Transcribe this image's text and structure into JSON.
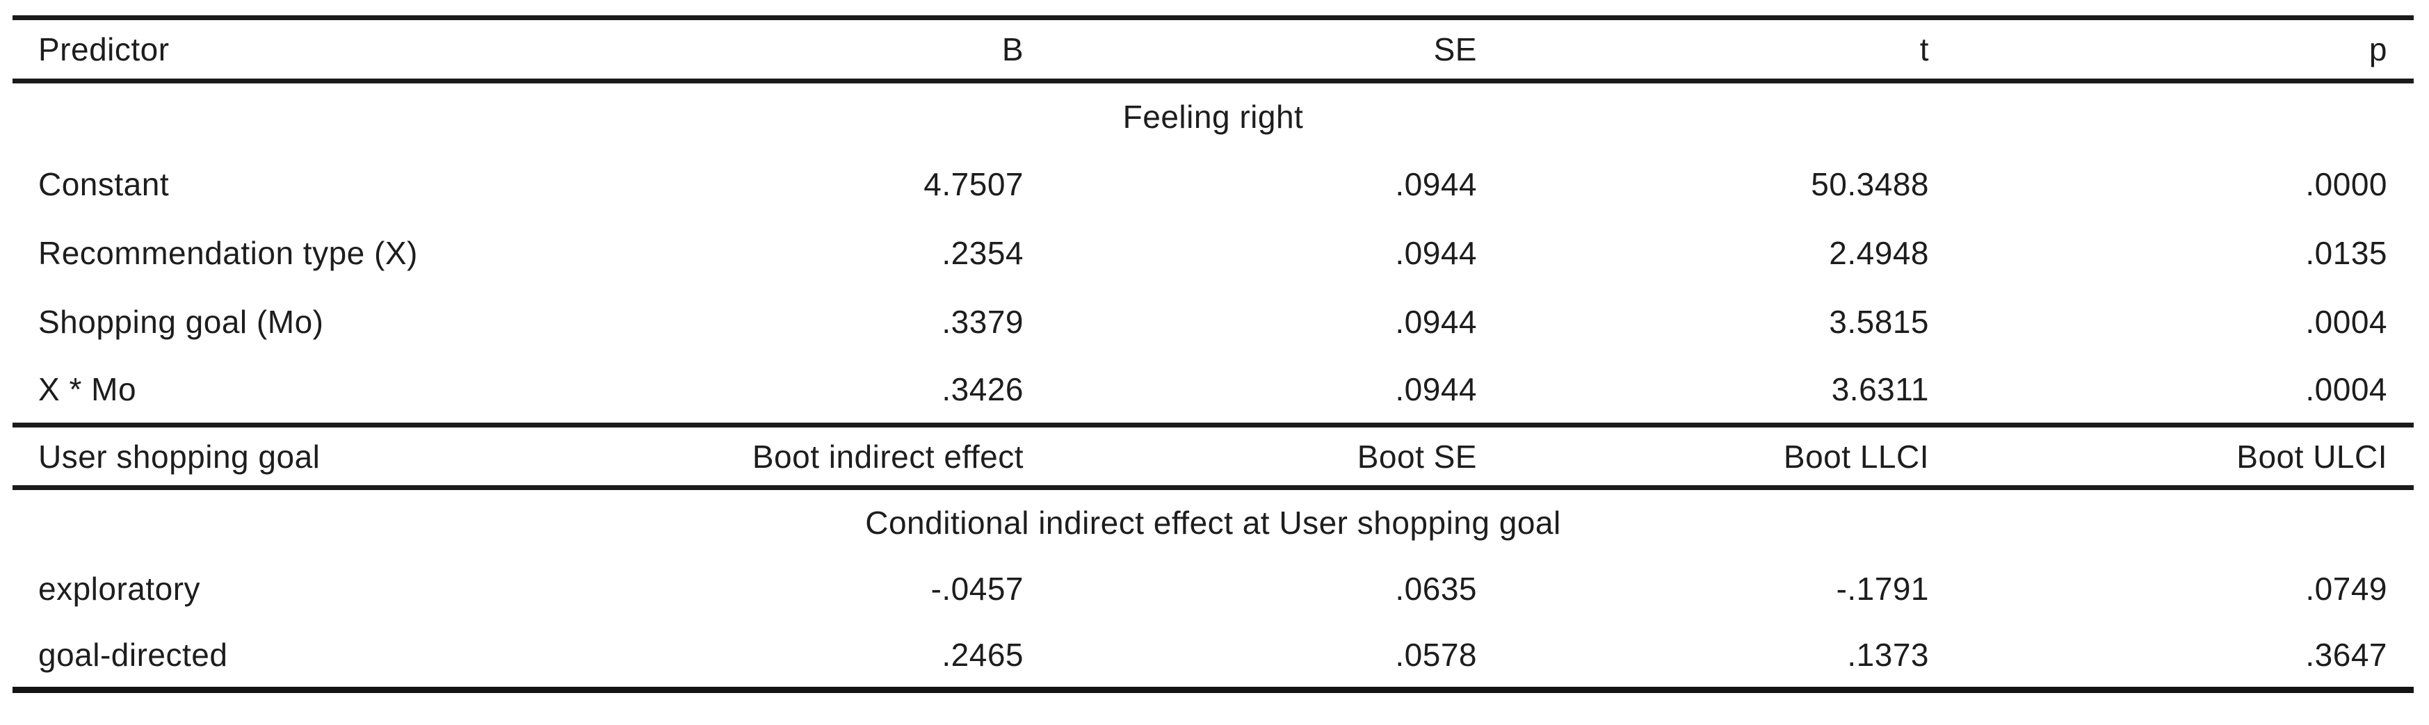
{
  "colors": {
    "text": "#1d1d1d",
    "rule": "#1b1b1b",
    "background": "#ffffff"
  },
  "table": {
    "section1": {
      "columns": {
        "predictor": "Predictor",
        "b": "B",
        "se": "SE",
        "t": "t",
        "p": "p"
      },
      "group_label": "Feeling right",
      "rows": [
        {
          "label": "Constant",
          "b": "4.7507",
          "se": ".0944",
          "t": "50.3488",
          "p": ".0000"
        },
        {
          "label": "Recommendation type (X)",
          "b": ".2354",
          "se": ".0944",
          "t": "2.4948",
          "p": ".0135"
        },
        {
          "label": "Shopping goal (Mo)",
          "b": ".3379",
          "se": ".0944",
          "t": "3.5815",
          "p": ".0004"
        },
        {
          "label": "X * Mo",
          "b": ".3426",
          "se": ".0944",
          "t": "3.6311",
          "p": ".0004"
        }
      ]
    },
    "section2": {
      "columns": {
        "goal": "User shopping goal",
        "effect": "Boot indirect effect",
        "se": "Boot SE",
        "llci": "Boot LLCI",
        "ulci": "Boot ULCI"
      },
      "group_label": "Conditional indirect effect at User shopping goal",
      "rows": [
        {
          "label": "exploratory",
          "effect": "-.0457",
          "se": ".0635",
          "llci": "-.1791",
          "ulci": ".0749"
        },
        {
          "label": "goal-directed",
          "effect": ".2465",
          "se": ".0578",
          "llci": ".1373",
          "ulci": ".3647"
        }
      ]
    }
  }
}
